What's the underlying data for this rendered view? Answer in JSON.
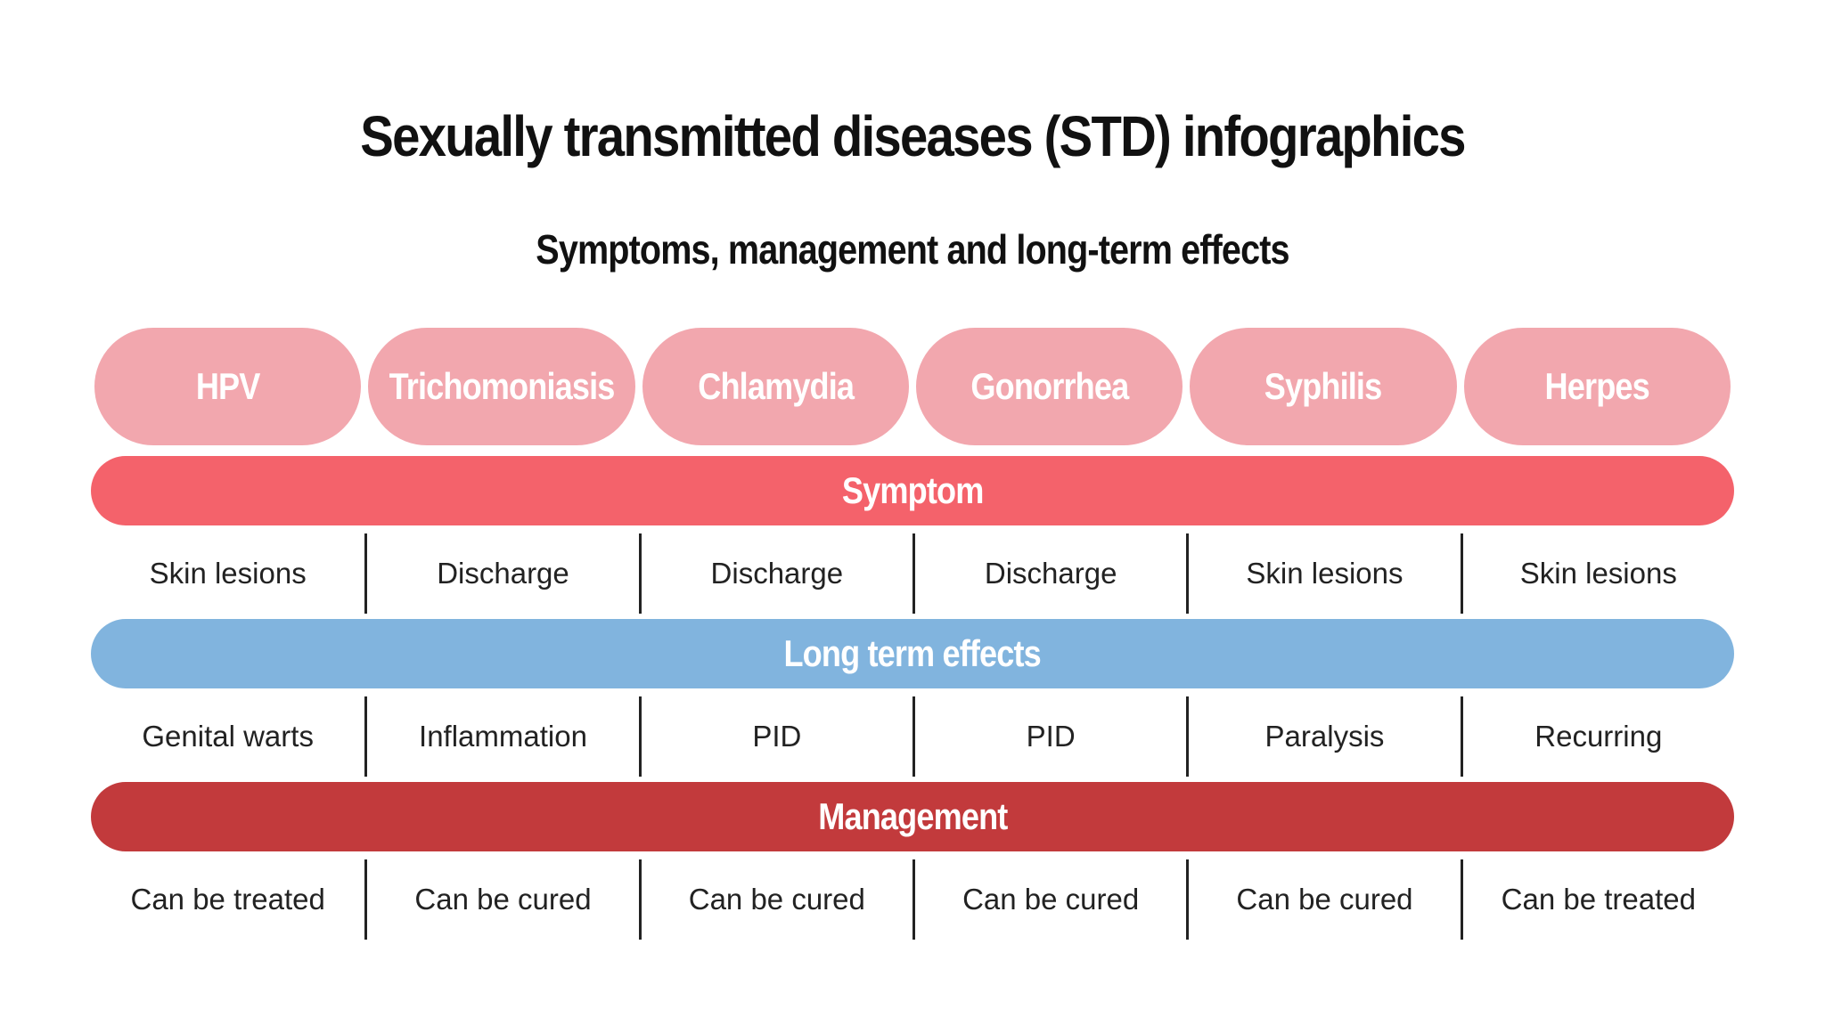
{
  "title": "Sexually transmitted diseases (STD) infographics",
  "subtitle": "Symptoms, management and long-term effects",
  "colors": {
    "pill": "#f2a7ae",
    "symptom": "#f4626b",
    "long_term": "#81b4de",
    "management": "#c23a3c"
  },
  "diseases": [
    "HPV",
    "Trichomoniasis",
    "Chlamydia",
    "Gonorrhea",
    "Syphilis",
    "Herpes"
  ],
  "sections": {
    "symptom": {
      "label": "Symptom",
      "values": [
        "Skin lesions",
        "Discharge",
        "Discharge",
        "Discharge",
        "Skin lesions",
        "Skin lesions"
      ]
    },
    "long_term": {
      "label": "Long term effects",
      "values": [
        "Genital warts",
        "Inflammation",
        "PID",
        "PID",
        "Paralysis",
        "Recurring"
      ]
    },
    "management": {
      "label": "Management",
      "values": [
        "Can be treated",
        "Can be cured",
        "Can be cured",
        "Can be cured",
        "Can be cured",
        "Can be treated"
      ]
    }
  }
}
